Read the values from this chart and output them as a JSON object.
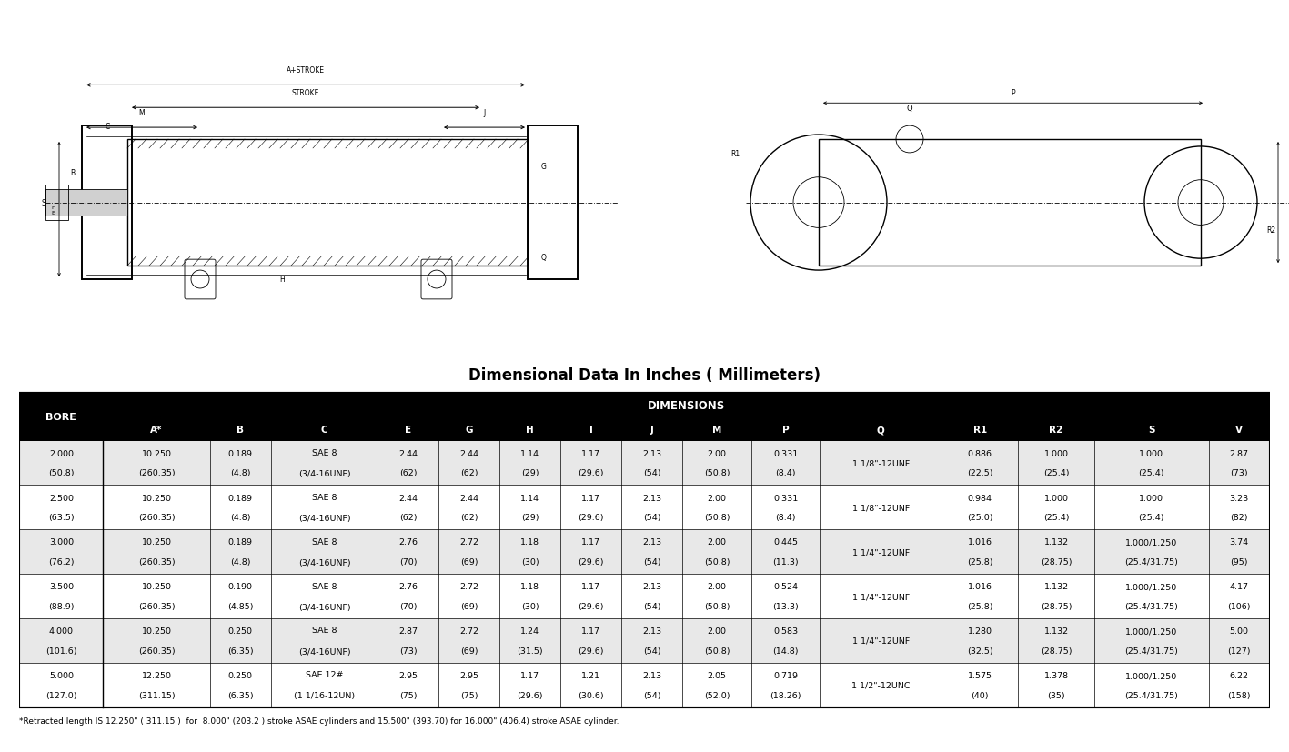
{
  "title": "Dimensional Data In Inches ( Millimeters)",
  "title_fontsize": 12,
  "title_fontweight": "bold",
  "background_color": "#ffffff",
  "header_bg": "#000000",
  "header_fg": "#ffffff",
  "row_bg_even": "#e8e8e8",
  "row_bg_odd": "#ffffff",
  "footnote": "*Retracted length IS 12.250\" ( 311.15 )  for  8.000\" (203.2 ) stroke ASAE cylinders and 15.500\" (393.70) for 16.000\" (406.4) stroke ASAE cylinder.",
  "col_headers": [
    "BORE",
    "A*",
    "B",
    "C",
    "E",
    "G",
    "H",
    "I",
    "J",
    "M",
    "P",
    "Q",
    "R1",
    "R2",
    "S",
    "V"
  ],
  "dim_header": "DIMENSIONS",
  "col_widths_raw": [
    5.5,
    7.0,
    4.0,
    7.0,
    4.0,
    4.0,
    4.0,
    4.0,
    4.0,
    4.5,
    4.5,
    8.0,
    5.0,
    5.0,
    7.5,
    4.0
  ],
  "rows": [
    {
      "bore": [
        "2.000",
        "(50.8)"
      ],
      "A": [
        "10.250",
        "(260.35)"
      ],
      "B": [
        "0.189",
        "(4.8)"
      ],
      "C": [
        "SAE 8",
        "(3/4-16UNF)"
      ],
      "E": [
        "2.44",
        "(62)"
      ],
      "G": [
        "2.44",
        "(62)"
      ],
      "H": [
        "1.14",
        "(29)"
      ],
      "I": [
        "1.17",
        "(29.6)"
      ],
      "J": [
        "2.13",
        "(54)"
      ],
      "M": [
        "2.00",
        "(50.8)"
      ],
      "P": [
        "0.331",
        "(8.4)"
      ],
      "Q": [
        "1 1/8\"-12UNF",
        ""
      ],
      "R1": [
        "0.886",
        "(22.5)"
      ],
      "R2": [
        "1.000",
        "(25.4)"
      ],
      "S": [
        "1.000",
        "(25.4)"
      ],
      "V": [
        "2.87",
        "(73)"
      ]
    },
    {
      "bore": [
        "2.500",
        "(63.5)"
      ],
      "A": [
        "10.250",
        "(260.35)"
      ],
      "B": [
        "0.189",
        "(4.8)"
      ],
      "C": [
        "SAE 8",
        "(3/4-16UNF)"
      ],
      "E": [
        "2.44",
        "(62)"
      ],
      "G": [
        "2.44",
        "(62)"
      ],
      "H": [
        "1.14",
        "(29)"
      ],
      "I": [
        "1.17",
        "(29.6)"
      ],
      "J": [
        "2.13",
        "(54)"
      ],
      "M": [
        "2.00",
        "(50.8)"
      ],
      "P": [
        "0.331",
        "(8.4)"
      ],
      "Q": [
        "1 1/8\"-12UNF",
        ""
      ],
      "R1": [
        "0.984",
        "(25.0)"
      ],
      "R2": [
        "1.000",
        "(25.4)"
      ],
      "S": [
        "1.000",
        "(25.4)"
      ],
      "V": [
        "3.23",
        "(82)"
      ]
    },
    {
      "bore": [
        "3.000",
        "(76.2)"
      ],
      "A": [
        "10.250",
        "(260.35)"
      ],
      "B": [
        "0.189",
        "(4.8)"
      ],
      "C": [
        "SAE 8",
        "(3/4-16UNF)"
      ],
      "E": [
        "2.76",
        "(70)"
      ],
      "G": [
        "2.72",
        "(69)"
      ],
      "H": [
        "1.18",
        "(30)"
      ],
      "I": [
        "1.17",
        "(29.6)"
      ],
      "J": [
        "2.13",
        "(54)"
      ],
      "M": [
        "2.00",
        "(50.8)"
      ],
      "P": [
        "0.445",
        "(11.3)"
      ],
      "Q": [
        "1 1/4\"-12UNF",
        ""
      ],
      "R1": [
        "1.016",
        "(25.8)"
      ],
      "R2": [
        "1.132",
        "(28.75)"
      ],
      "S": [
        "1.000/1.250",
        "(25.4/31.75)"
      ],
      "V": [
        "3.74",
        "(95)"
      ]
    },
    {
      "bore": [
        "3.500",
        "(88.9)"
      ],
      "A": [
        "10.250",
        "(260.35)"
      ],
      "B": [
        "0.190",
        "(4.85)"
      ],
      "C": [
        "SAE 8",
        "(3/4-16UNF)"
      ],
      "E": [
        "2.76",
        "(70)"
      ],
      "G": [
        "2.72",
        "(69)"
      ],
      "H": [
        "1.18",
        "(30)"
      ],
      "I": [
        "1.17",
        "(29.6)"
      ],
      "J": [
        "2.13",
        "(54)"
      ],
      "M": [
        "2.00",
        "(50.8)"
      ],
      "P": [
        "0.524",
        "(13.3)"
      ],
      "Q": [
        "1 1/4\"-12UNF",
        ""
      ],
      "R1": [
        "1.016",
        "(25.8)"
      ],
      "R2": [
        "1.132",
        "(28.75)"
      ],
      "S": [
        "1.000/1.250",
        "(25.4/31.75)"
      ],
      "V": [
        "4.17",
        "(106)"
      ]
    },
    {
      "bore": [
        "4.000",
        "(101.6)"
      ],
      "A": [
        "10.250",
        "(260.35)"
      ],
      "B": [
        "0.250",
        "(6.35)"
      ],
      "C": [
        "SAE 8",
        "(3/4-16UNF)"
      ],
      "E": [
        "2.87",
        "(73)"
      ],
      "G": [
        "2.72",
        "(69)"
      ],
      "H": [
        "1.24",
        "(31.5)"
      ],
      "I": [
        "1.17",
        "(29.6)"
      ],
      "J": [
        "2.13",
        "(54)"
      ],
      "M": [
        "2.00",
        "(50.8)"
      ],
      "P": [
        "0.583",
        "(14.8)"
      ],
      "Q": [
        "1 1/4\"-12UNF",
        ""
      ],
      "R1": [
        "1.280",
        "(32.5)"
      ],
      "R2": [
        "1.132",
        "(28.75)"
      ],
      "S": [
        "1.000/1.250",
        "(25.4/31.75)"
      ],
      "V": [
        "5.00",
        "(127)"
      ]
    },
    {
      "bore": [
        "5.000",
        "(127.0)"
      ],
      "A": [
        "12.250",
        "(311.15)"
      ],
      "B": [
        "0.250",
        "(6.35)"
      ],
      "C": [
        "SAE 12#",
        "(1 1/16-12UN)"
      ],
      "E": [
        "2.95",
        "(75)"
      ],
      "G": [
        "2.95",
        "(75)"
      ],
      "H": [
        "1.17",
        "(29.6)"
      ],
      "I": [
        "1.21",
        "(30.6)"
      ],
      "J": [
        "2.13",
        "(54)"
      ],
      "M": [
        "2.05",
        "(52.0)"
      ],
      "P": [
        "0.719",
        "(18.26)"
      ],
      "Q": [
        "1 1/2\"-12UNC",
        ""
      ],
      "R1": [
        "1.575",
        "(40)"
      ],
      "R2": [
        "1.378",
        "(35)"
      ],
      "S": [
        "1.000/1.250",
        "(25.4/31.75)"
      ],
      "V": [
        "6.22",
        "(158)"
      ]
    }
  ]
}
